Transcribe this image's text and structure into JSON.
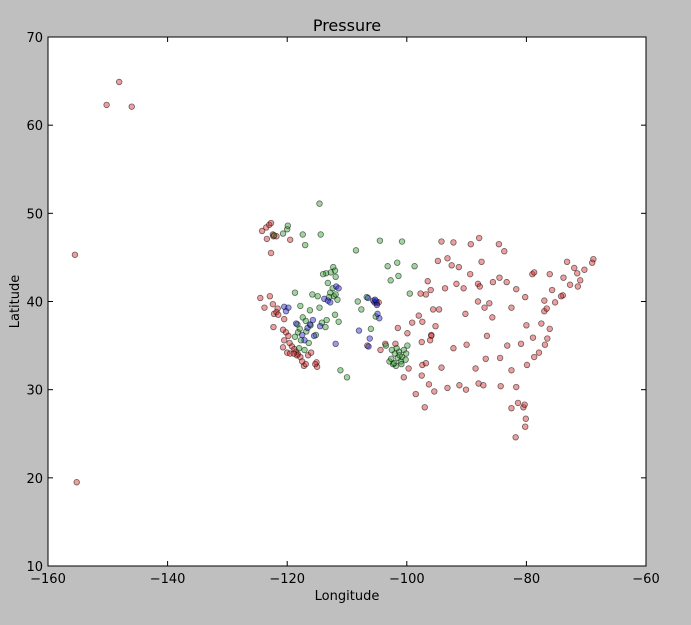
{
  "chart_data": {
    "type": "scatter",
    "title": "Pressure",
    "xlabel": "Longitude",
    "ylabel": "Latitude",
    "xlim": [
      -160,
      -60
    ],
    "ylim": [
      10,
      70
    ],
    "xticks": [
      -160,
      -140,
      -120,
      -100,
      -80,
      -60
    ],
    "yticks": [
      10,
      20,
      30,
      40,
      50,
      60,
      70
    ],
    "xtick_labels": [
      "−160",
      "−140",
      "−120",
      "−100",
      "−80",
      "−60"
    ],
    "ytick_labels": [
      "10",
      "20",
      "30",
      "40",
      "50",
      "60",
      "70"
    ],
    "grid": false,
    "point_alpha": 0.45,
    "series": [
      {
        "color": "#d62728",
        "points": [
          [
            -148.1,
            64.9
          ],
          [
            -150.2,
            62.3
          ],
          [
            -146.0,
            62.1
          ],
          [
            -155.5,
            45.3
          ],
          [
            -155.2,
            19.5
          ],
          [
            -124.2,
            48.0
          ],
          [
            -123.5,
            48.4
          ],
          [
            -123.0,
            48.7
          ],
          [
            -122.7,
            48.9
          ],
          [
            -122.4,
            47.6
          ],
          [
            -123.4,
            47.1
          ],
          [
            -122.3,
            47.4
          ],
          [
            -121.8,
            47.4
          ],
          [
            -119.5,
            47.0
          ],
          [
            -122.7,
            45.5
          ],
          [
            -124.5,
            40.4
          ],
          [
            -123.8,
            39.3
          ],
          [
            -122.9,
            40.6
          ],
          [
            -122.3,
            37.1
          ],
          [
            -122.4,
            39.7
          ],
          [
            -121.6,
            39.2
          ],
          [
            -122.2,
            38.6
          ],
          [
            -121.8,
            38.8
          ],
          [
            -121.5,
            38.5
          ],
          [
            -120.5,
            38.0
          ],
          [
            -120.7,
            36.8
          ],
          [
            -120.2,
            36.5
          ],
          [
            -119.8,
            36.1
          ],
          [
            -120.5,
            35.6
          ],
          [
            -119.6,
            35.3
          ],
          [
            -119.2,
            34.9
          ],
          [
            -118.8,
            34.6
          ],
          [
            -120.0,
            34.2
          ],
          [
            -120.7,
            34.8
          ],
          [
            -119.5,
            34.1
          ],
          [
            -118.5,
            34.3
          ],
          [
            -118.2,
            34.0
          ],
          [
            -118.4,
            33.9
          ],
          [
            -118.9,
            34.1
          ],
          [
            -117.8,
            33.7
          ],
          [
            -117.2,
            32.7
          ],
          [
            -116.9,
            32.9
          ],
          [
            -117.5,
            33.2
          ],
          [
            -115.0,
            32.6
          ],
          [
            -115.1,
            33.1
          ],
          [
            -116.5,
            33.9
          ],
          [
            -116.0,
            34.2
          ],
          [
            -115.3,
            32.9
          ],
          [
            -105.0,
            39.8
          ],
          [
            -104.7,
            39.9
          ],
          [
            -99.1,
            37.6
          ],
          [
            -97.7,
            40.9
          ],
          [
            -97.4,
            37.7
          ],
          [
            -96.8,
            40.8
          ],
          [
            -96.5,
            42.3
          ],
          [
            -96.0,
            41.3
          ],
          [
            -95.9,
            36.2
          ],
          [
            -95.6,
            39.1
          ],
          [
            -94.8,
            44.6
          ],
          [
            -94.6,
            39.1
          ],
          [
            -94.2,
            46.8
          ],
          [
            -93.2,
            44.9
          ],
          [
            -93.6,
            41.5
          ],
          [
            -92.2,
            46.7
          ],
          [
            -92.5,
            44.1
          ],
          [
            -91.7,
            42.0
          ],
          [
            -91.3,
            43.9
          ],
          [
            -90.5,
            41.5
          ],
          [
            -90.2,
            38.6
          ],
          [
            -89.3,
            46.5
          ],
          [
            -89.4,
            43.1
          ],
          [
            -88.1,
            42.0
          ],
          [
            -87.8,
            41.7
          ],
          [
            -88.1,
            40.0
          ],
          [
            -87.9,
            47.2
          ],
          [
            -87.5,
            44.5
          ],
          [
            -87.0,
            39.3
          ],
          [
            -86.2,
            39.8
          ],
          [
            -85.6,
            42.2
          ],
          [
            -84.5,
            42.7
          ],
          [
            -84.6,
            46.5
          ],
          [
            -83.7,
            45.7
          ],
          [
            -83.3,
            42.2
          ],
          [
            -82.5,
            39.3
          ],
          [
            -81.7,
            41.4
          ],
          [
            -80.2,
            40.5
          ],
          [
            -80.0,
            37.3
          ],
          [
            -79.9,
            32.8
          ],
          [
            -78.9,
            35.9
          ],
          [
            -77.5,
            37.5
          ],
          [
            -77.0,
            38.9
          ],
          [
            -76.6,
            39.2
          ],
          [
            -75.2,
            39.9
          ],
          [
            -76.1,
            43.1
          ],
          [
            -73.8,
            42.7
          ],
          [
            -73.9,
            40.7
          ],
          [
            -72.7,
            41.9
          ],
          [
            -71.4,
            41.7
          ],
          [
            -71.0,
            42.4
          ],
          [
            -71.5,
            43.2
          ],
          [
            -72.0,
            43.8
          ],
          [
            -70.3,
            43.6
          ],
          [
            -68.8,
            44.8
          ],
          [
            -69.0,
            44.4
          ],
          [
            -73.2,
            44.5
          ],
          [
            -74.2,
            40.6
          ],
          [
            -75.7,
            41.3
          ],
          [
            -77.0,
            40.1
          ],
          [
            -79.0,
            43.1
          ],
          [
            -78.7,
            43.3
          ],
          [
            -81.7,
            30.3
          ],
          [
            -81.4,
            28.5
          ],
          [
            -82.5,
            27.9
          ],
          [
            -80.2,
            25.8
          ],
          [
            -81.8,
            24.6
          ],
          [
            -80.1,
            26.7
          ],
          [
            -80.5,
            28.0
          ],
          [
            -80.3,
            28.3
          ],
          [
            -84.3,
            30.4
          ],
          [
            -87.2,
            30.5
          ],
          [
            -88.0,
            30.7
          ],
          [
            -90.1,
            30.0
          ],
          [
            -91.2,
            30.5
          ],
          [
            -93.2,
            30.2
          ],
          [
            -95.4,
            29.8
          ],
          [
            -97.0,
            28.0
          ],
          [
            -97.5,
            35.4
          ],
          [
            -98.5,
            29.5
          ],
          [
            -94.2,
            32.5
          ],
          [
            -95.9,
            36.1
          ],
          [
            -97.4,
            32.8
          ],
          [
            -96.8,
            33.0
          ],
          [
            -92.2,
            34.7
          ],
          [
            -90.0,
            35.1
          ],
          [
            -88.5,
            32.4
          ],
          [
            -86.8,
            33.5
          ],
          [
            -86.6,
            36.1
          ],
          [
            -85.7,
            38.2
          ],
          [
            -84.4,
            33.6
          ],
          [
            -83.2,
            35.0
          ],
          [
            -82.5,
            32.2
          ],
          [
            -80.9,
            35.2
          ],
          [
            -77.9,
            34.2
          ],
          [
            -78.7,
            33.7
          ],
          [
            -76.9,
            35.1
          ],
          [
            -76.1,
            36.9
          ],
          [
            -76.5,
            35.8
          ],
          [
            -96.1,
            35.6
          ],
          [
            -97.5,
            31.6
          ],
          [
            -96.3,
            30.6
          ],
          [
            -99.7,
            32.4
          ],
          [
            -101.9,
            35.2
          ],
          [
            -100.5,
            31.4
          ],
          [
            -103.6,
            35.2
          ],
          [
            -106.6,
            35.0
          ],
          [
            -104.4,
            34.5
          ],
          [
            -99.9,
            36.4
          ],
          [
            -101.5,
            37.0
          ],
          [
            -98.0,
            38.4
          ],
          [
            -95.2,
            37.2
          ]
        ]
      },
      {
        "color": "#2ca02c",
        "points": [
          [
            -114.6,
            51.1
          ],
          [
            -122.2,
            47.5
          ],
          [
            -120.7,
            47.7
          ],
          [
            -120.0,
            48.2
          ],
          [
            -119.9,
            48.6
          ],
          [
            -117.4,
            47.6
          ],
          [
            -117.0,
            46.4
          ],
          [
            -114.4,
            47.6
          ],
          [
            -108.5,
            45.8
          ],
          [
            -104.5,
            46.9
          ],
          [
            -100.8,
            46.8
          ],
          [
            -98.7,
            44.0
          ],
          [
            -101.6,
            44.4
          ],
          [
            -103.2,
            44.0
          ],
          [
            -101.4,
            42.9
          ],
          [
            -102.7,
            42.4
          ],
          [
            -99.5,
            40.9
          ],
          [
            -113.5,
            43.2
          ],
          [
            -112.7,
            43.3
          ],
          [
            -112.3,
            43.9
          ],
          [
            -112.0,
            43.5
          ],
          [
            -114.0,
            43.1
          ],
          [
            -111.9,
            42.8
          ],
          [
            -113.2,
            42.1
          ],
          [
            -112.8,
            41.0
          ],
          [
            -112.4,
            41.5
          ],
          [
            -112.2,
            40.6
          ],
          [
            -111.9,
            40.8
          ],
          [
            -113.0,
            40.5
          ],
          [
            -111.6,
            40.2
          ],
          [
            -114.9,
            40.6
          ],
          [
            -115.8,
            40.8
          ],
          [
            -118.7,
            41.0
          ],
          [
            -117.8,
            39.5
          ],
          [
            -116.2,
            39.0
          ],
          [
            -114.6,
            39.3
          ],
          [
            -112.0,
            38.5
          ],
          [
            -111.4,
            37.7
          ],
          [
            -113.6,
            37.1
          ],
          [
            -115.2,
            36.2
          ],
          [
            -116.8,
            36.6
          ],
          [
            -117.9,
            36.9
          ],
          [
            -118.3,
            37.4
          ],
          [
            -118.7,
            36.0
          ],
          [
            -117.7,
            35.6
          ],
          [
            -116.4,
            35.3
          ],
          [
            -117.1,
            34.5
          ],
          [
            -118.0,
            34.7
          ],
          [
            -116.9,
            37.8
          ],
          [
            -117.4,
            38.2
          ],
          [
            -110.0,
            31.4
          ],
          [
            -111.1,
            32.2
          ],
          [
            -108.2,
            40.0
          ],
          [
            -106.7,
            40.5
          ],
          [
            -107.6,
            39.1
          ],
          [
            -105.2,
            38.3
          ],
          [
            -106.0,
            36.9
          ],
          [
            -103.5,
            35.0
          ],
          [
            -102.9,
            33.2
          ],
          [
            -102.0,
            34.1
          ],
          [
            -101.5,
            33.6
          ],
          [
            -101.3,
            34.3
          ],
          [
            -101.0,
            33.2
          ],
          [
            -100.8,
            33.7
          ],
          [
            -100.5,
            34.5
          ],
          [
            -101.8,
            32.7
          ],
          [
            -102.3,
            32.9
          ],
          [
            -102.6,
            33.5
          ],
          [
            -100.9,
            32.9
          ],
          [
            -101.2,
            33.9
          ],
          [
            -100.1,
            34.1
          ],
          [
            -100.2,
            33.4
          ],
          [
            -102.1,
            33.0
          ],
          [
            -101.7,
            34.7
          ],
          [
            -99.9,
            35.0
          ],
          [
            -102.5,
            34.5
          ],
          [
            -118.2,
            36.5
          ],
          [
            -116.1,
            37.3
          ],
          [
            -114.2,
            37.6
          ],
          [
            -113.4,
            37.9
          ]
        ]
      },
      {
        "color": "#1f1fd6",
        "points": [
          [
            -120.5,
            39.4
          ],
          [
            -120.2,
            38.9
          ],
          [
            -119.8,
            39.3
          ],
          [
            -117.1,
            35.6
          ],
          [
            -117.5,
            36.2
          ],
          [
            -116.6,
            37.0
          ],
          [
            -116.2,
            37.4
          ],
          [
            -115.5,
            36.1
          ],
          [
            -113.8,
            40.3
          ],
          [
            -113.2,
            40.1
          ],
          [
            -112.8,
            39.9
          ],
          [
            -111.8,
            41.7
          ],
          [
            -111.4,
            41.5
          ],
          [
            -111.9,
            35.2
          ],
          [
            -114.5,
            37.2
          ],
          [
            -115.7,
            37.9
          ],
          [
            -118.5,
            37.5
          ],
          [
            -108.0,
            36.7
          ],
          [
            -106.5,
            40.4
          ],
          [
            -105.6,
            40.1
          ],
          [
            -105.4,
            39.9
          ],
          [
            -105.1,
            40.0
          ],
          [
            -105.3,
            40.2
          ],
          [
            -105.0,
            39.6
          ],
          [
            -106.2,
            35.8
          ],
          [
            -106.4,
            34.9
          ],
          [
            -104.9,
            38.6
          ],
          [
            -104.6,
            38.1
          ]
        ]
      }
    ]
  }
}
